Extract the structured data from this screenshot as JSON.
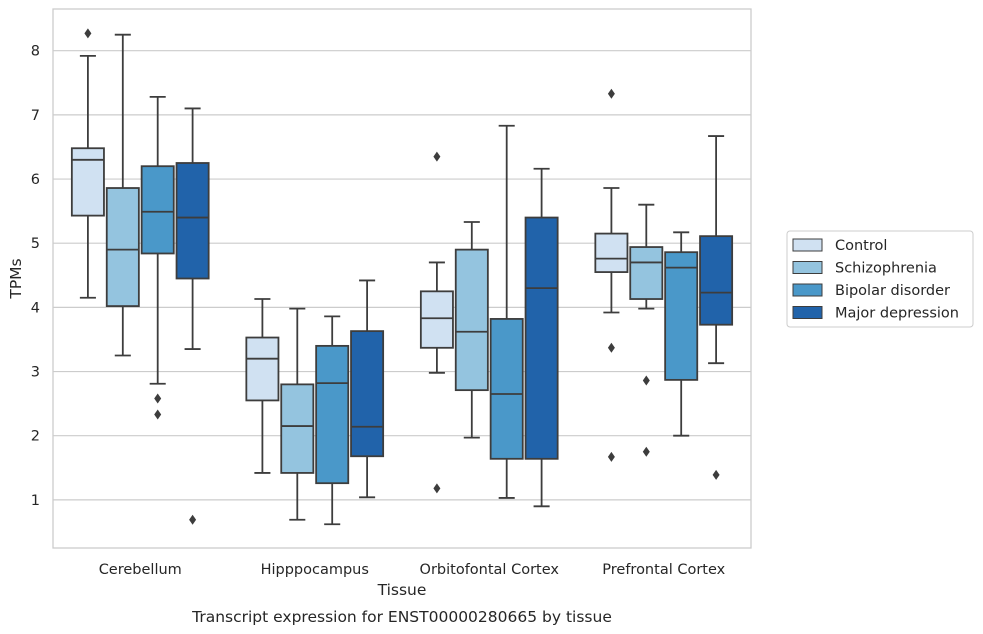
{
  "caption": "Transcript expression for ENST00000280665 by tissue",
  "chart_data": {
    "type": "boxplot",
    "xlabel": "Tissue",
    "ylabel": "TPMs",
    "ylim": [
      0.25,
      8.65
    ],
    "yticks": [
      1,
      2,
      3,
      4,
      5,
      6,
      7,
      8
    ],
    "grid": "horizontal",
    "legend_placement": "right",
    "categories": [
      "Cerebellum",
      "Hipppocampus",
      "Orbitofontal Cortex",
      "Prefrontal Cortex"
    ],
    "series": [
      {
        "name": "Control",
        "color": "#d0e1f2",
        "boxes": [
          {
            "whislo": 4.15,
            "q1": 5.43,
            "med": 6.3,
            "q3": 6.48,
            "whishi": 7.92,
            "fliers": [
              8.27
            ]
          },
          {
            "whislo": 1.42,
            "q1": 2.55,
            "med": 3.2,
            "q3": 3.53,
            "whishi": 4.13,
            "fliers": []
          },
          {
            "whislo": 2.98,
            "q1": 3.37,
            "med": 3.83,
            "q3": 4.25,
            "whishi": 4.7,
            "fliers": [
              6.35,
              1.18
            ]
          },
          {
            "whislo": 3.92,
            "q1": 4.55,
            "med": 4.76,
            "q3": 5.15,
            "whishi": 5.86,
            "fliers": [
              7.33,
              3.37,
              1.67
            ]
          }
        ]
      },
      {
        "name": "Schizophrenia",
        "color": "#94c4df",
        "boxes": [
          {
            "whislo": 3.25,
            "q1": 4.02,
            "med": 4.9,
            "q3": 5.86,
            "whishi": 8.25,
            "fliers": []
          },
          {
            "whislo": 0.69,
            "q1": 1.42,
            "med": 2.15,
            "q3": 2.8,
            "whishi": 3.98,
            "fliers": []
          },
          {
            "whislo": 1.97,
            "q1": 2.71,
            "med": 3.62,
            "q3": 4.9,
            "whishi": 5.33,
            "fliers": []
          },
          {
            "whislo": 3.98,
            "q1": 4.13,
            "med": 4.7,
            "q3": 4.94,
            "whishi": 5.6,
            "fliers": [
              2.86,
              1.75
            ]
          }
        ]
      },
      {
        "name": "Bipolar disorder",
        "color": "#4a98c9",
        "boxes": [
          {
            "whislo": 2.81,
            "q1": 4.84,
            "med": 5.49,
            "q3": 6.2,
            "whishi": 7.28,
            "fliers": [
              2.58,
              2.33
            ]
          },
          {
            "whislo": 0.62,
            "q1": 1.26,
            "med": 2.82,
            "q3": 3.4,
            "whishi": 3.86,
            "fliers": []
          },
          {
            "whislo": 1.03,
            "q1": 1.64,
            "med": 2.65,
            "q3": 3.82,
            "whishi": 6.83,
            "fliers": []
          },
          {
            "whislo": 2.0,
            "q1": 2.87,
            "med": 4.62,
            "q3": 4.86,
            "whishi": 5.17,
            "fliers": []
          }
        ]
      },
      {
        "name": "Major depression",
        "color": "#2163aa",
        "boxes": [
          {
            "whislo": 3.35,
            "q1": 4.45,
            "med": 5.4,
            "q3": 6.25,
            "whishi": 7.1,
            "fliers": [
              0.69
            ]
          },
          {
            "whislo": 1.04,
            "q1": 1.68,
            "med": 2.14,
            "q3": 3.63,
            "whishi": 4.42,
            "fliers": []
          },
          {
            "whislo": 0.9,
            "q1": 1.64,
            "med": 4.3,
            "q3": 5.4,
            "whishi": 6.16,
            "fliers": []
          },
          {
            "whislo": 3.13,
            "q1": 3.73,
            "med": 4.23,
            "q3": 5.11,
            "whishi": 6.67,
            "fliers": [
              1.39
            ]
          }
        ]
      }
    ]
  }
}
